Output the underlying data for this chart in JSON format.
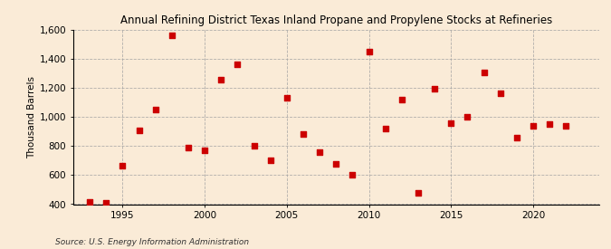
{
  "title": "Annual Refining District Texas Inland Propane and Propylene Stocks at Refineries",
  "ylabel": "Thousand Barrels",
  "source": "Source: U.S. Energy Information Administration",
  "background_color": "#faebd7",
  "plot_background_color": "#faebd7",
  "marker_color": "#cc0000",
  "marker_size": 18,
  "marker_shape": "s",
  "xlim": [
    1992,
    2024
  ],
  "ylim": [
    400,
    1600
  ],
  "yticks": [
    400,
    600,
    800,
    1000,
    1200,
    1400,
    1600
  ],
  "ytick_labels": [
    "400",
    "600",
    "800",
    "1,000",
    "1,200",
    "1,400",
    "1,600"
  ],
  "xticks": [
    1995,
    2000,
    2005,
    2010,
    2015,
    2020
  ],
  "years": [
    1993,
    1994,
    1995,
    1996,
    1997,
    1998,
    1999,
    2000,
    2001,
    2002,
    2003,
    2004,
    2005,
    2006,
    2007,
    2008,
    2009,
    2010,
    2011,
    2012,
    2013,
    2014,
    2015,
    2016,
    2017,
    2018,
    2019,
    2020,
    2021,
    2022
  ],
  "values": [
    415,
    410,
    665,
    905,
    1050,
    1565,
    790,
    770,
    1260,
    1360,
    805,
    705,
    1135,
    880,
    760,
    680,
    605,
    1450,
    920,
    1120,
    475,
    1195,
    960,
    1000,
    1310,
    1165,
    860,
    940,
    950,
    940
  ]
}
